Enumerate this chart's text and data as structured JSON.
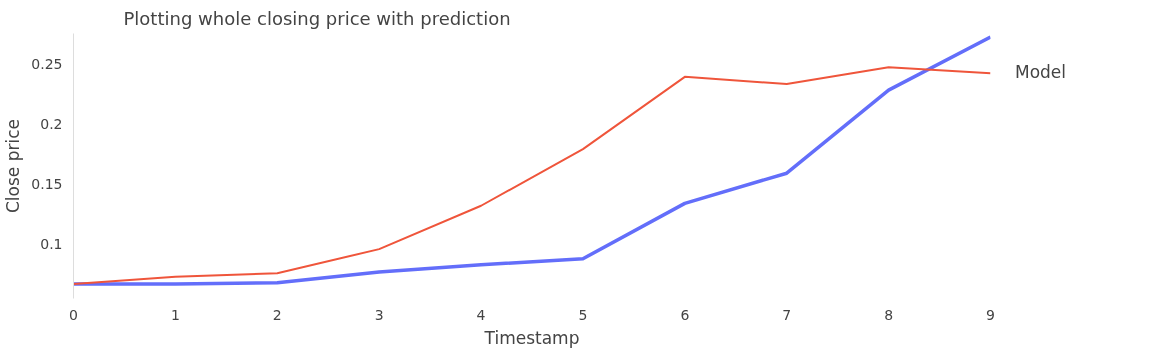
{
  "chart_data": {
    "type": "line",
    "title": "Plotting whole closing price with prediction",
    "xlabel": "Timestamp",
    "ylabel": "Close price",
    "legend_title": "Model",
    "grid": false,
    "x": [
      0,
      1,
      2,
      3,
      4,
      5,
      6,
      7,
      8,
      9
    ],
    "xlim": [
      0,
      9
    ],
    "xticks": [
      0,
      1,
      2,
      3,
      4,
      5,
      6,
      7,
      8,
      9
    ],
    "ylim": [
      0.055,
      0.275
    ],
    "yticks": [
      {
        "value": 0.1,
        "label": "0.1"
      },
      {
        "value": 0.15,
        "label": "0.15"
      },
      {
        "value": 0.2,
        "label": "0.2"
      },
      {
        "value": 0.25,
        "label": "0.25"
      }
    ],
    "series": [
      {
        "color": "#636efa",
        "values": [
          0.067,
          0.067,
          0.068,
          0.077,
          0.083,
          0.088,
          0.134,
          0.159,
          0.228,
          0.272
        ]
      },
      {
        "color": "#ef553b",
        "values": [
          0.067,
          0.073,
          0.076,
          0.096,
          0.132,
          0.179,
          0.239,
          0.233,
          0.247,
          0.242
        ]
      }
    ]
  }
}
